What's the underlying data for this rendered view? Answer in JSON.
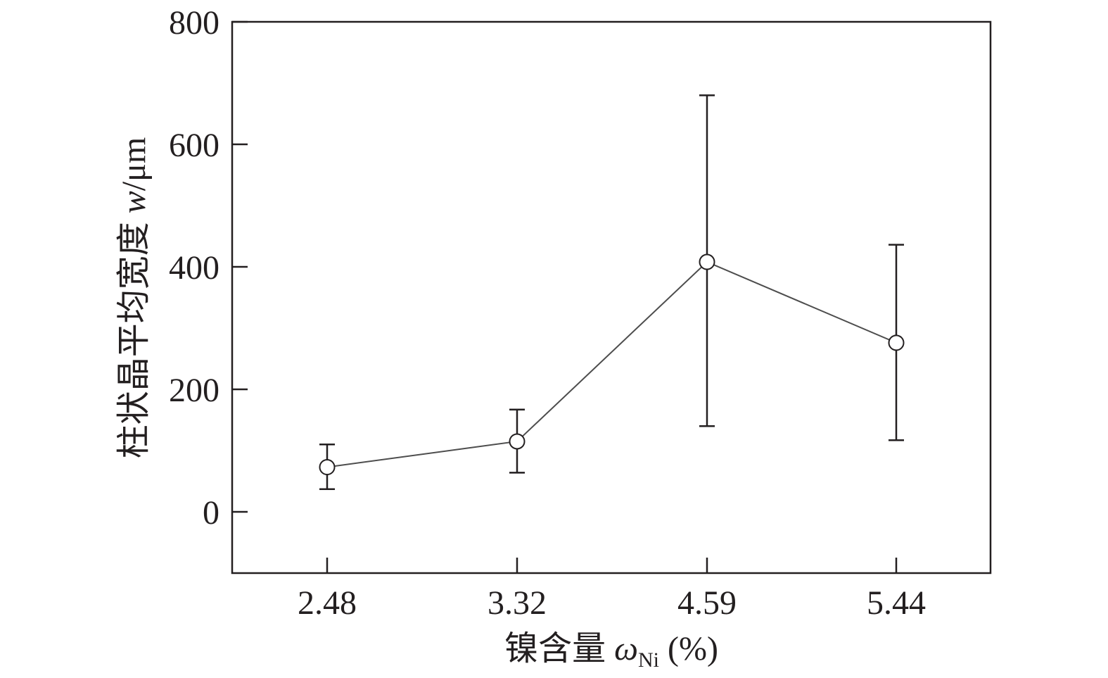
{
  "chart_data": {
    "type": "line",
    "title": "",
    "xlabel": {
      "prefix": "镍含量 ",
      "symbol": "ω",
      "subscript": "Ni",
      "suffix": " (%)"
    },
    "ylabel": {
      "prefix": "柱状晶平均宽度 ",
      "symbol": "w",
      "suffix": "/μm"
    },
    "categories": [
      "2.48",
      "3.32",
      "4.59",
      "5.44"
    ],
    "series": [
      {
        "values": [
          73,
          115,
          408,
          276
        ],
        "error_low": [
          37,
          64,
          140,
          117
        ],
        "error_high": [
          110,
          167,
          680,
          436
        ]
      }
    ],
    "ylim": [
      -100,
      800
    ],
    "yticks": [
      0,
      200,
      400,
      600,
      800
    ],
    "grid": false,
    "legend": "none",
    "colors": {
      "line": "#4d4d4d",
      "marker_stroke": "#231f20",
      "marker_fill": "#ffffff",
      "axis": "#231f20"
    }
  }
}
